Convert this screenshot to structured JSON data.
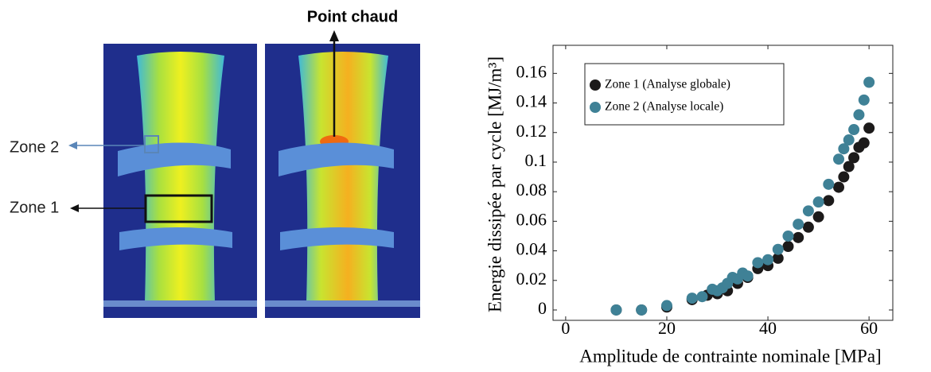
{
  "image_labels": {
    "hot_spot": "Point chaud",
    "zone2": "Zone 2",
    "zone1": "Zone 1"
  },
  "chart_data": {
    "type": "scatter",
    "xlabel": "Amplitude de contrainte nominale [MPa]",
    "ylabel": "Energie dissipée par cycle [MJ/m³]",
    "xlim": [
      -2.5,
      64.7
    ],
    "ylim": [
      -0.007,
      0.179
    ],
    "xticks": [
      0,
      20,
      40,
      60
    ],
    "yticks": [
      0,
      0.02,
      0.04,
      0.06,
      0.08,
      0.1,
      0.12,
      0.14,
      0.16
    ],
    "legend": "upper left",
    "series": [
      {
        "name": "Zone 1 (Analyse globale)",
        "color": "#1c1a1a",
        "x": [
          10,
          15,
          20,
          25,
          28,
          30,
          32,
          34,
          36,
          38,
          40,
          42,
          44,
          46,
          48,
          50,
          52,
          54,
          55,
          56,
          57,
          58,
          59,
          60
        ],
        "values": [
          0,
          0,
          0.002,
          0.007,
          0.01,
          0.011,
          0.013,
          0.018,
          0.022,
          0.028,
          0.03,
          0.035,
          0.043,
          0.049,
          0.056,
          0.063,
          0.074,
          0.083,
          0.09,
          0.097,
          0.103,
          0.11,
          0.113,
          0.123
        ]
      },
      {
        "name": "Zone 2 (Analyse locale)",
        "color": "#3f8196",
        "x": [
          10,
          15,
          20,
          25,
          27,
          29,
          30,
          31,
          32,
          33,
          34,
          35,
          36,
          38,
          40,
          42,
          44,
          46,
          48,
          50,
          52,
          54,
          55,
          56,
          57,
          58,
          59,
          60
        ],
        "values": [
          0,
          0,
          0.003,
          0.008,
          0.009,
          0.014,
          0.013,
          0.015,
          0.018,
          0.022,
          0.021,
          0.025,
          0.023,
          0.032,
          0.034,
          0.041,
          0.05,
          0.058,
          0.067,
          0.073,
          0.085,
          0.102,
          0.109,
          0.115,
          0.122,
          0.132,
          0.142,
          0.154
        ]
      }
    ]
  }
}
